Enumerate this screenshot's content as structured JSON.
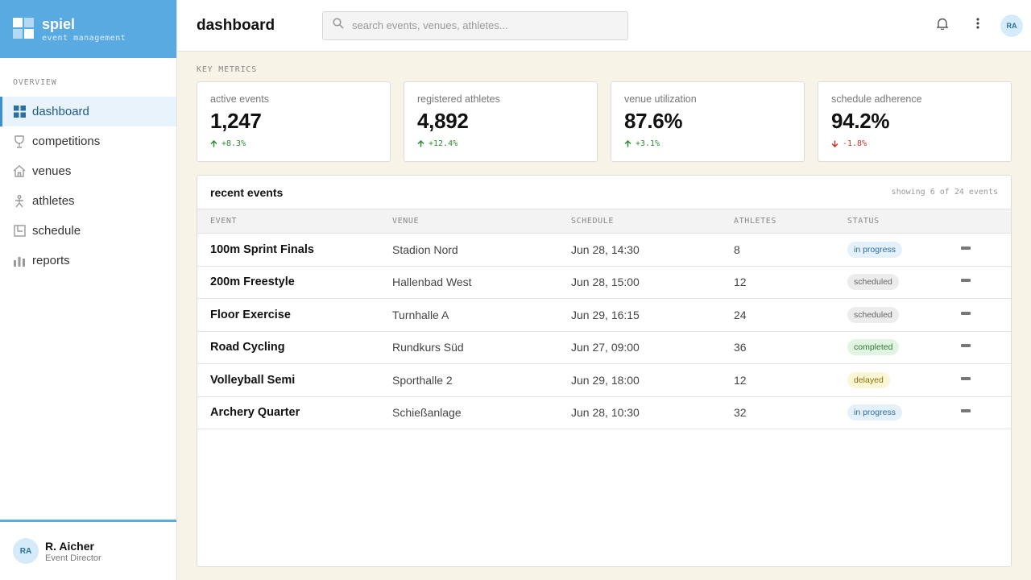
{
  "brand": {
    "name": "spiel",
    "subtitle": "event management"
  },
  "sidebar": {
    "section_label": "OVERVIEW",
    "items": [
      {
        "label": "dashboard",
        "icon": "grid-icon",
        "active": true
      },
      {
        "label": "competitions",
        "icon": "trophy-icon"
      },
      {
        "label": "venues",
        "icon": "home-icon"
      },
      {
        "label": "athletes",
        "icon": "athlete-icon"
      },
      {
        "label": "schedule",
        "icon": "calendar-icon"
      },
      {
        "label": "reports",
        "icon": "bar-chart-icon"
      }
    ]
  },
  "user": {
    "initials": "RA",
    "name": "R. Aicher",
    "role": "Event Director"
  },
  "header": {
    "title": "dashboard",
    "search_placeholder": "search events, venues, athletes...",
    "avatar_initials": "RA"
  },
  "metrics": {
    "section_label": "KEY METRICS",
    "items": [
      {
        "label": "active events",
        "value": "1,247",
        "delta": "+8.3%",
        "trend": "up"
      },
      {
        "label": "registered athletes",
        "value": "4,892",
        "delta": "+12.4%",
        "trend": "up"
      },
      {
        "label": "venue utilization",
        "value": "87.6%",
        "delta": "+3.1%",
        "trend": "up"
      },
      {
        "label": "schedule adherence",
        "value": "94.2%",
        "delta": "-1.8%",
        "trend": "down"
      }
    ]
  },
  "events": {
    "title": "recent events",
    "count_text": "showing 6 of 24 events",
    "columns": [
      "EVENT",
      "VENUE",
      "SCHEDULE",
      "ATHLETES",
      "STATUS"
    ],
    "rows": [
      {
        "event": "100m Sprint Finals",
        "venue": "Stadion Nord",
        "schedule": "Jun 28, 14:30",
        "athletes": "8",
        "status": "in progress"
      },
      {
        "event": "200m Freestyle",
        "venue": "Hallenbad West",
        "schedule": "Jun 28, 15:00",
        "athletes": "12",
        "status": "scheduled"
      },
      {
        "event": "Floor Exercise",
        "venue": "Turnhalle A",
        "schedule": "Jun 29, 16:15",
        "athletes": "24",
        "status": "scheduled"
      },
      {
        "event": "Road Cycling",
        "venue": "Rundkurs Süd",
        "schedule": "Jun 27, 09:00",
        "athletes": "36",
        "status": "completed"
      },
      {
        "event": "Volleyball Semi",
        "venue": "Sporthalle 2",
        "schedule": "Jun 29, 18:00",
        "athletes": "12",
        "status": "delayed"
      },
      {
        "event": "Archery Quarter",
        "venue": "Schießanlage",
        "schedule": "Jun 28, 10:30",
        "athletes": "32",
        "status": "in progress"
      }
    ]
  },
  "colors": {
    "accent": "#5aaae2",
    "background": "#f7f3e6",
    "positive": "#2f8a35",
    "negative": "#c0392b"
  }
}
